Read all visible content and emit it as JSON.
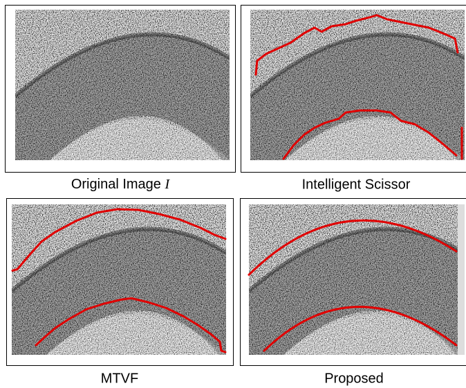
{
  "panels": [
    {
      "caption": "Original Image",
      "symbol": "I"
    },
    {
      "caption": "Intelligent Scissor"
    },
    {
      "caption": "MTVF"
    },
    {
      "caption": "Proposed"
    }
  ]
}
